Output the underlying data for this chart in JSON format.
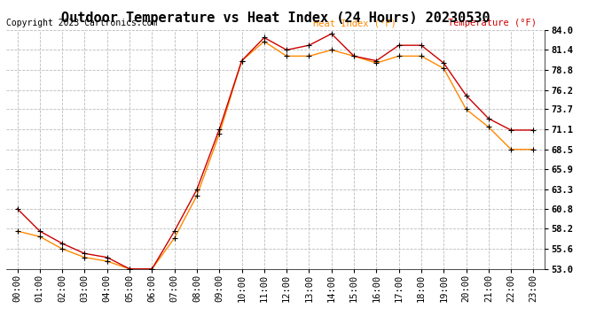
{
  "title": "Outdoor Temperature vs Heat Index (24 Hours) 20230530",
  "copyright": "Copyright 2023 Cartronics.com",
  "legend_heat_index": "Heat Index (°F)",
  "legend_temperature": "Temperature (°F)",
  "x_labels": [
    "00:00",
    "01:00",
    "02:00",
    "03:00",
    "04:00",
    "05:00",
    "06:00",
    "07:00",
    "08:00",
    "09:00",
    "10:00",
    "11:00",
    "12:00",
    "13:00",
    "14:00",
    "15:00",
    "16:00",
    "17:00",
    "18:00",
    "19:00",
    "20:00",
    "21:00",
    "22:00",
    "23:00"
  ],
  "temperature": [
    60.8,
    57.9,
    56.3,
    55.0,
    54.5,
    53.0,
    53.0,
    57.9,
    63.3,
    71.1,
    80.0,
    83.0,
    81.4,
    82.0,
    83.5,
    80.6,
    80.0,
    82.0,
    82.0,
    79.7,
    75.5,
    72.5,
    71.0,
    71.0
  ],
  "heat_index": [
    57.9,
    57.2,
    55.6,
    54.5,
    54.0,
    53.0,
    53.0,
    57.0,
    62.5,
    70.5,
    80.0,
    82.5,
    80.6,
    80.6,
    81.4,
    80.6,
    79.7,
    80.6,
    80.6,
    79.0,
    73.7,
    71.4,
    68.5,
    68.5
  ],
  "ylim_min": 53.0,
  "ylim_max": 84.0,
  "y_ticks": [
    53.0,
    55.6,
    58.2,
    60.8,
    63.3,
    65.9,
    68.5,
    71.1,
    73.7,
    76.2,
    78.8,
    81.4,
    84.0
  ],
  "y_tick_labels": [
    "53.0",
    "55.6",
    "58.2",
    "60.8",
    "63.3",
    "65.9",
    "68.5",
    "71.1",
    "73.7",
    "76.2",
    "78.8",
    "81.4",
    "84.0"
  ],
  "temp_color": "#cc0000",
  "heat_color": "#ff8800",
  "marker_color": "black",
  "grid_color": "#bbbbbb",
  "background_color": "#ffffff",
  "title_fontsize": 11,
  "label_fontsize": 7.5,
  "copyright_fontsize": 7
}
